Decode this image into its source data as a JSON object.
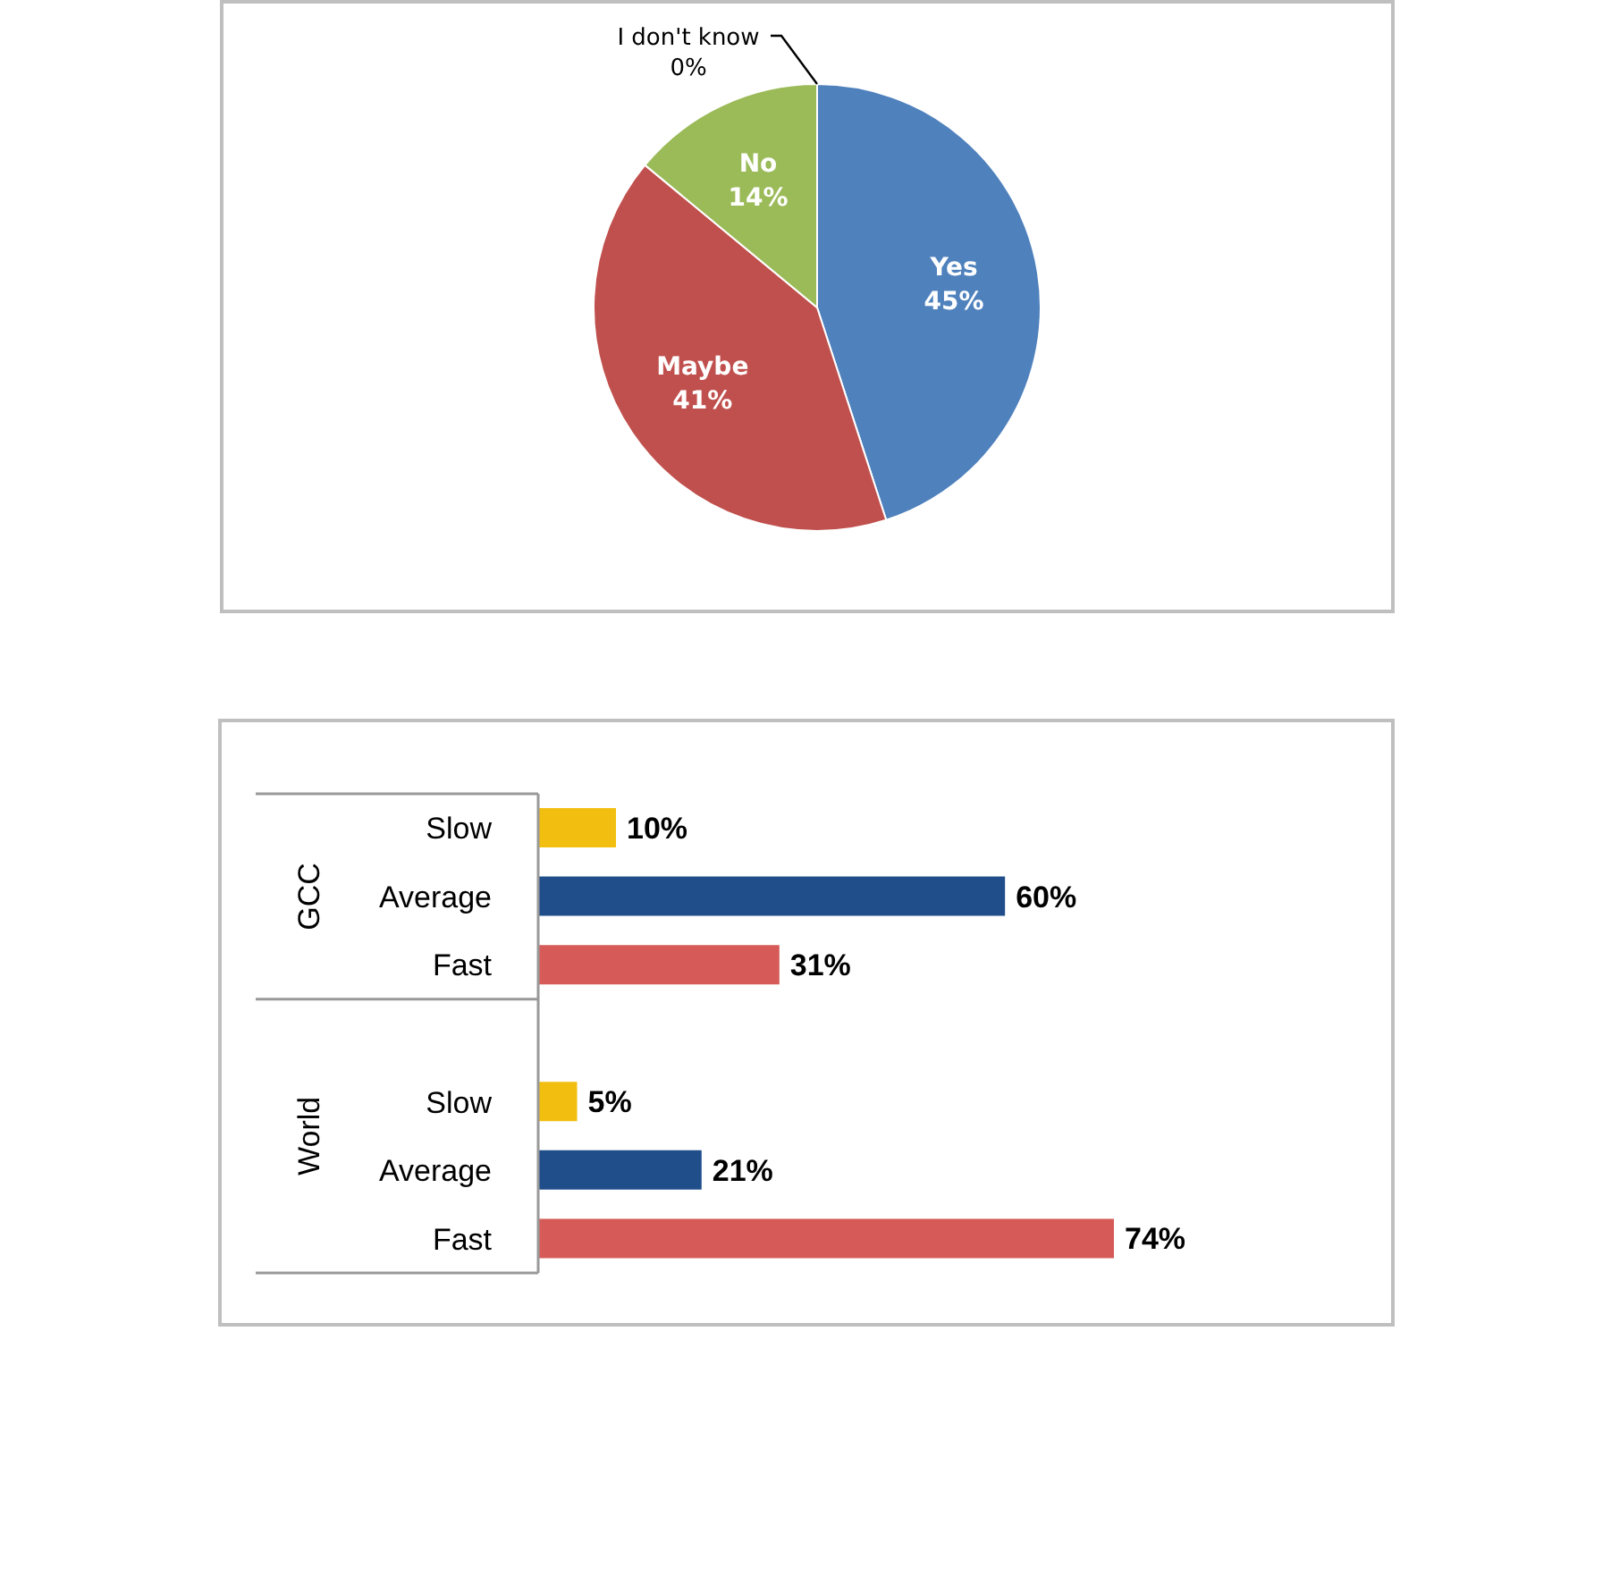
{
  "chart_data": [
    {
      "type": "pie",
      "categories": [
        "Yes",
        "Maybe",
        "No",
        "I don't know"
      ],
      "values": [
        45,
        41,
        14,
        0
      ],
      "colors": [
        "#4f81bd",
        "#c0504d",
        "#9bbb59",
        "#8064a2"
      ],
      "value_labels": [
        "45%",
        "41%",
        "14%",
        "0%"
      ]
    },
    {
      "type": "bar",
      "orientation": "horizontal",
      "categories": [
        "Slow",
        "Average",
        "Fast",
        null,
        "Slow",
        "Average",
        "Fast"
      ],
      "values": [
        10,
        60,
        31,
        null,
        5,
        21,
        74
      ],
      "colors": [
        "#f2bf10",
        "#1f4e8a",
        "#d65b58",
        null,
        "#f2bf10",
        "#1f4e8a",
        "#d65b58"
      ],
      "value_labels": [
        "10%",
        "60%",
        "31%",
        null,
        "5%",
        "21%",
        "74%"
      ],
      "annotations": [
        "GCC",
        "World"
      ]
    }
  ]
}
